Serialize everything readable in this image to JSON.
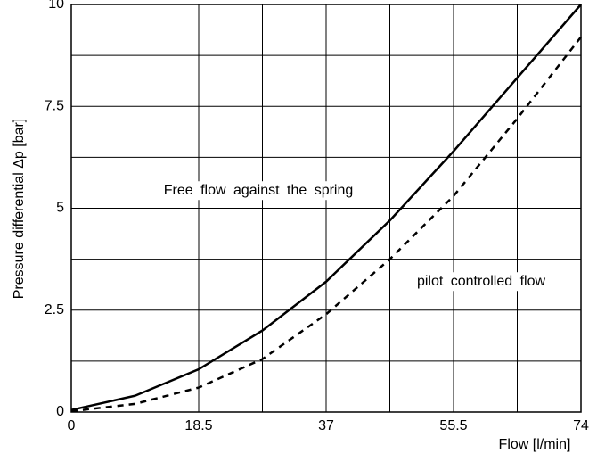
{
  "chart_data": {
    "type": "line",
    "x_label": "Flow [l/min]",
    "y_label": "Pressure differential Δp [bar]",
    "annotations": [
      "Free flow against the spring",
      "pilot controlled flow"
    ],
    "x": [
      0,
      9.25,
      18.5,
      27.75,
      37,
      46.25,
      55.5,
      64.75,
      74
    ],
    "series": [
      {
        "color": "#000000",
        "dash": "solid",
        "values": [
          0.05,
          0.4,
          1.05,
          2.0,
          3.2,
          4.7,
          6.4,
          8.2,
          10
        ]
      },
      {
        "color": "#000000",
        "dash": "dashed",
        "values": [
          0.02,
          0.2,
          0.6,
          1.3,
          2.4,
          3.75,
          5.3,
          7.2,
          9.2
        ]
      }
    ],
    "xlim": [
      0,
      74
    ],
    "xticks": [
      0,
      18.5,
      37,
      55.5,
      74
    ],
    "xminor_ticks": [
      9.25,
      27.75,
      46.25,
      64.75
    ],
    "ylim": [
      0,
      10
    ],
    "yticks": [
      0,
      2.5,
      5,
      7.5,
      10
    ],
    "yminor_ticks": [
      1.25,
      3.75,
      6.25,
      8.75
    ],
    "grid": true
  }
}
